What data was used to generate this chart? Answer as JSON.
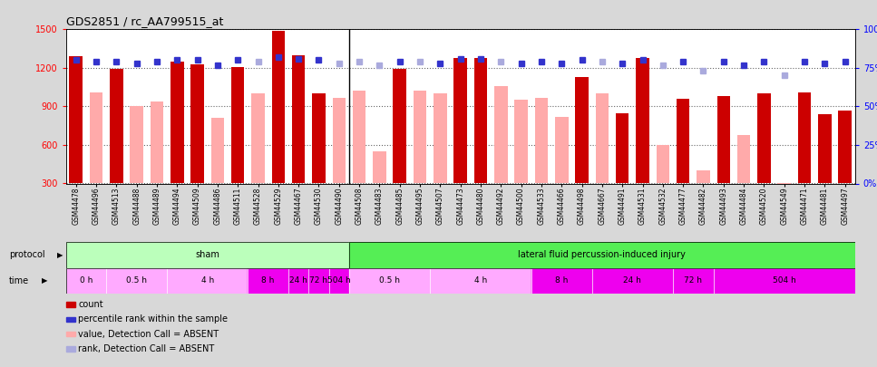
{
  "title": "GDS2851 / rc_AA799515_at",
  "samples": [
    "GSM44478",
    "GSM44496",
    "GSM44513",
    "GSM44488",
    "GSM44489",
    "GSM44494",
    "GSM44509",
    "GSM44486",
    "GSM44511",
    "GSM44528",
    "GSM44529",
    "GSM44467",
    "GSM44530",
    "GSM44490",
    "GSM44508",
    "GSM44483",
    "GSM44485",
    "GSM44495",
    "GSM44507",
    "GSM44473",
    "GSM44480",
    "GSM44492",
    "GSM44500",
    "GSM44533",
    "GSM44466",
    "GSM44498",
    "GSM44667",
    "GSM44491",
    "GSM44531",
    "GSM44532",
    "GSM44477",
    "GSM44482",
    "GSM44493",
    "GSM44484",
    "GSM44520",
    "GSM44549",
    "GSM44471",
    "GSM44481",
    "GSM44497"
  ],
  "count_values": [
    1290,
    1010,
    1190,
    900,
    940,
    1250,
    1230,
    810,
    1210,
    1000,
    1490,
    1300,
    1000,
    970,
    1020,
    550,
    1190,
    1020,
    1000,
    1280,
    1280,
    1060,
    950,
    970,
    820,
    1130,
    1000,
    850,
    1280,
    600,
    960,
    400,
    980,
    680,
    1000,
    290,
    1010,
    840,
    870
  ],
  "rank_values": [
    80,
    79,
    79,
    78,
    79,
    80,
    80,
    77,
    80,
    79,
    82,
    81,
    80,
    78,
    79,
    77,
    79,
    79,
    78,
    81,
    81,
    79,
    78,
    79,
    78,
    80,
    79,
    78,
    80,
    77,
    79,
    73,
    79,
    77,
    79,
    70,
    79,
    78,
    79
  ],
  "absent_count": [
    false,
    true,
    false,
    true,
    true,
    false,
    false,
    true,
    false,
    true,
    false,
    false,
    false,
    true,
    true,
    true,
    false,
    true,
    true,
    false,
    false,
    true,
    true,
    true,
    true,
    false,
    true,
    false,
    false,
    true,
    false,
    true,
    false,
    true,
    false,
    true,
    false,
    false,
    false
  ],
  "absent_rank": [
    false,
    false,
    false,
    false,
    false,
    false,
    false,
    false,
    false,
    true,
    false,
    false,
    false,
    true,
    true,
    true,
    false,
    true,
    false,
    false,
    false,
    true,
    false,
    false,
    false,
    false,
    true,
    false,
    false,
    true,
    false,
    true,
    false,
    false,
    false,
    true,
    false,
    false,
    false
  ],
  "ylim_left": [
    300,
    1500
  ],
  "ylim_right": [
    0,
    100
  ],
  "yticks_left": [
    300,
    600,
    900,
    1200,
    1500
  ],
  "yticks_right": [
    0,
    25,
    50,
    75,
    100
  ],
  "bar_color_present": "#cc0000",
  "bar_color_absent": "#ffaaaa",
  "rank_color_present": "#3333cc",
  "rank_color_absent": "#aaaadd",
  "bg_color": "#d8d8d8",
  "plot_bg": "#ffffff",
  "time_data": [
    {
      "label": "0 h",
      "start": 0,
      "end": 2,
      "color": "#ffaaff"
    },
    {
      "label": "0.5 h",
      "start": 2,
      "end": 5,
      "color": "#ffaaff"
    },
    {
      "label": "4 h",
      "start": 5,
      "end": 9,
      "color": "#ffaaff"
    },
    {
      "label": "8 h",
      "start": 9,
      "end": 11,
      "color": "#ee00ee"
    },
    {
      "label": "24 h",
      "start": 11,
      "end": 12,
      "color": "#ee00ee"
    },
    {
      "label": "72 h",
      "start": 12,
      "end": 13,
      "color": "#ee00ee"
    },
    {
      "label": "504 h",
      "start": 13,
      "end": 14,
      "color": "#ee00ee"
    },
    {
      "label": "0.5 h",
      "start": 14,
      "end": 18,
      "color": "#ffaaff"
    },
    {
      "label": "4 h",
      "start": 18,
      "end": 23,
      "color": "#ffaaff"
    },
    {
      "label": "8 h",
      "start": 23,
      "end": 26,
      "color": "#ee00ee"
    },
    {
      "label": "24 h",
      "start": 26,
      "end": 30,
      "color": "#ee00ee"
    },
    {
      "label": "72 h",
      "start": 30,
      "end": 32,
      "color": "#ee00ee"
    },
    {
      "label": "504 h",
      "start": 32,
      "end": 39,
      "color": "#ee00ee"
    }
  ],
  "protocol_data": [
    {
      "label": "sham",
      "start": 0,
      "end": 14,
      "color": "#bbffbb"
    },
    {
      "label": "lateral fluid percussion-induced injury",
      "start": 14,
      "end": 39,
      "color": "#55ee55"
    }
  ],
  "legend_items": [
    {
      "color": "#cc0000",
      "label": "count"
    },
    {
      "color": "#3333cc",
      "label": "percentile rank within the sample"
    },
    {
      "color": "#ffaaaa",
      "label": "value, Detection Call = ABSENT"
    },
    {
      "color": "#aaaadd",
      "label": "rank, Detection Call = ABSENT"
    }
  ]
}
